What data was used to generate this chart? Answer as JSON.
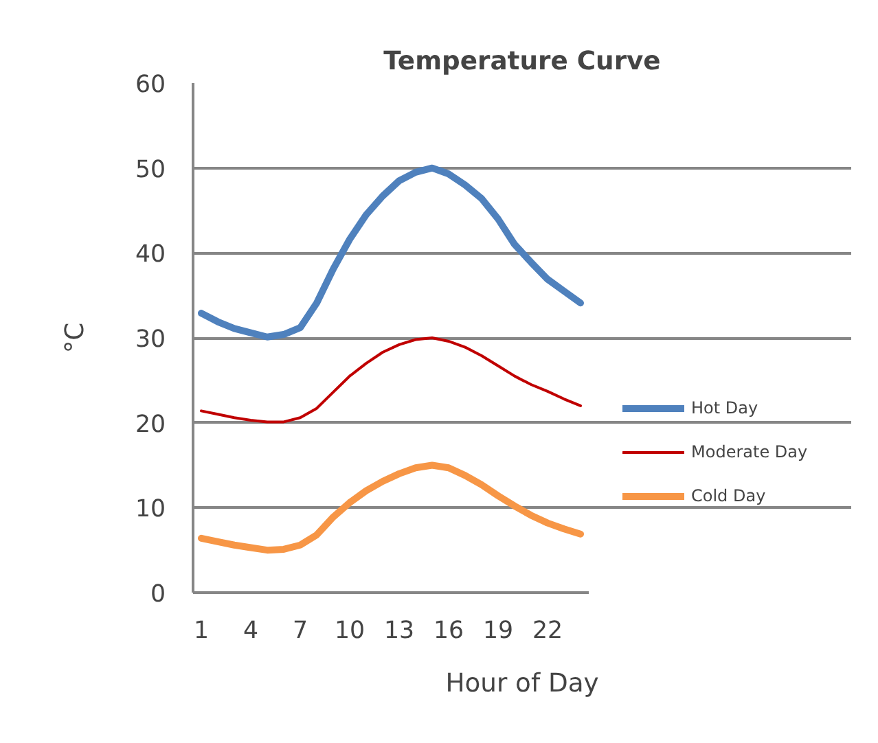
{
  "chart_data": {
    "type": "line",
    "title": "Temperature Curve",
    "xlabel": "Hour of Day",
    "ylabel": "°C",
    "x": [
      1,
      2,
      3,
      4,
      5,
      6,
      7,
      8,
      9,
      10,
      11,
      12,
      13,
      14,
      15,
      16,
      17,
      18,
      19,
      20,
      21,
      22,
      23,
      24
    ],
    "xlim": [
      0.5,
      24.5
    ],
    "xticks": [
      1,
      4,
      7,
      10,
      13,
      16,
      19,
      22
    ],
    "ylim": [
      0,
      60
    ],
    "yticks": [
      0,
      10,
      20,
      30,
      40,
      50,
      60
    ],
    "grid": "y",
    "legend": "right",
    "marker": "none",
    "line_style": "solid",
    "series": [
      {
        "name": "Hot Day",
        "color": "#4f81bd",
        "values": [
          32.9,
          31.9,
          31.1,
          30.6,
          30.1,
          30.4,
          31.2,
          34.1,
          38.1,
          41.6,
          44.5,
          46.7,
          48.5,
          49.5,
          50,
          49.3,
          48,
          46.4,
          44,
          41,
          38.9,
          36.9,
          35.5,
          34.1
        ]
      },
      {
        "name": "Moderate Day",
        "color": "#c00000",
        "values": [
          21.4,
          21.0,
          20.6,
          20.3,
          20.1,
          20.1,
          20.6,
          21.7,
          23.6,
          25.5,
          27,
          28.3,
          29.2,
          29.8,
          30,
          29.6,
          28.9,
          27.9,
          26.7,
          25.5,
          24.5,
          23.7,
          22.8,
          22
        ]
      },
      {
        "name": "Cold Day",
        "color": "#f79646",
        "values": [
          6.4,
          6,
          5.6,
          5.3,
          5,
          5.1,
          5.6,
          6.8,
          8.9,
          10.6,
          12,
          13.1,
          14,
          14.7,
          15,
          14.7,
          13.8,
          12.7,
          11.4,
          10.2,
          9.1,
          8.2,
          7.5,
          6.9
        ]
      }
    ]
  }
}
